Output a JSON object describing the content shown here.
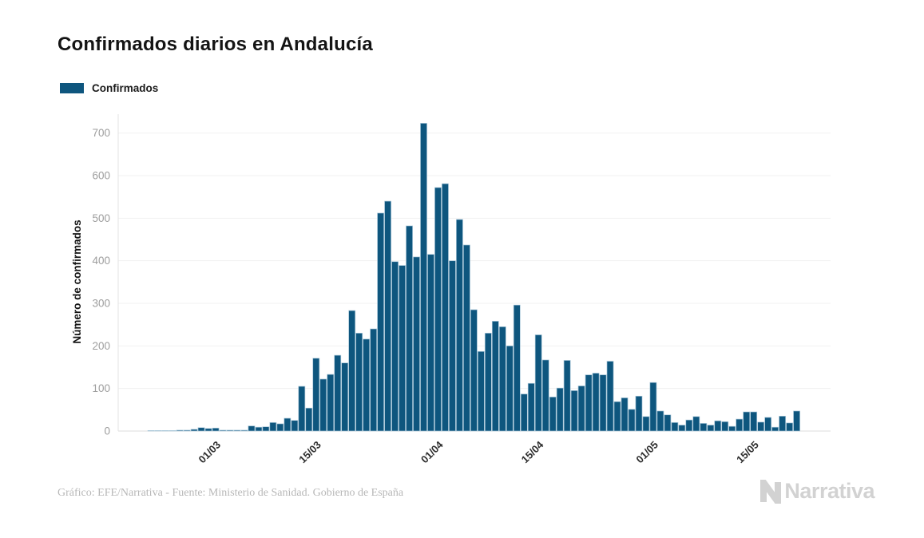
{
  "header": {
    "title": "Confirmados diarios en Andalucía"
  },
  "legend": {
    "label": "Confirmados",
    "swatch_color": "#0e567e"
  },
  "footer": {
    "credit": "Gráfico: EFE/Narrativa - Fuente: Ministerio de Sanidad. Gobierno de España"
  },
  "branding": {
    "logo_text": "Narrativa",
    "logo_color": "#d2d2d2"
  },
  "chart_data": {
    "type": "bar",
    "title": "Confirmados diarios en Andalucía",
    "series_name": "Confirmados",
    "xlabel": "",
    "ylabel": "Número de confirmados",
    "ylim": [
      0,
      700
    ],
    "ytick_step": 100,
    "grid": true,
    "legend_position": "top-left",
    "bar_color": "#0e567e",
    "bar_edge_color": "#a9c7d9",
    "xtick_labels": [
      "01/03",
      "15/03",
      "01/04",
      "15/04",
      "01/05",
      "15/05"
    ],
    "categories": [
      "21/02",
      "22/02",
      "23/02",
      "24/02",
      "25/02",
      "26/02",
      "27/02",
      "28/02",
      "29/02",
      "01/03",
      "02/03",
      "03/03",
      "04/03",
      "05/03",
      "06/03",
      "07/03",
      "08/03",
      "09/03",
      "10/03",
      "11/03",
      "12/03",
      "13/03",
      "14/03",
      "15/03",
      "16/03",
      "17/03",
      "18/03",
      "19/03",
      "20/03",
      "21/03",
      "22/03",
      "23/03",
      "24/03",
      "25/03",
      "26/03",
      "27/03",
      "28/03",
      "29/03",
      "30/03",
      "31/03",
      "01/04",
      "02/04",
      "03/04",
      "04/04",
      "05/04",
      "06/04",
      "07/04",
      "08/04",
      "09/04",
      "10/04",
      "11/04",
      "12/04",
      "13/04",
      "14/04",
      "15/04",
      "16/04",
      "17/04",
      "18/04",
      "19/04",
      "20/04",
      "21/04",
      "22/04",
      "23/04",
      "24/04",
      "25/04",
      "26/04",
      "27/04",
      "28/04",
      "29/04",
      "30/04",
      "01/05",
      "02/05",
      "03/05",
      "04/05",
      "05/05",
      "06/05",
      "07/05",
      "08/05",
      "09/05",
      "10/05",
      "11/05",
      "12/05",
      "13/05",
      "14/05",
      "15/05",
      "16/05",
      "17/05",
      "18/05",
      "19/05",
      "20/05",
      "21/05"
    ],
    "values": [
      1,
      1,
      1,
      1,
      2,
      2,
      4,
      8,
      6,
      7,
      2,
      2,
      2,
      2,
      12,
      9,
      10,
      20,
      17,
      30,
      25,
      105,
      54,
      171,
      122,
      133,
      178,
      160,
      283,
      230,
      216,
      240,
      512,
      540,
      398,
      389,
      482,
      409,
      723,
      415,
      572,
      581,
      400,
      497,
      437,
      285,
      187,
      230,
      258,
      245,
      200,
      296,
      87,
      112,
      226,
      167,
      80,
      101,
      166,
      95,
      106,
      132,
      136,
      132,
      164,
      69,
      78,
      51,
      82,
      34,
      114,
      47,
      38,
      20,
      14,
      26,
      34,
      18,
      14,
      24,
      22,
      11,
      28,
      45,
      45,
      21,
      32,
      9,
      35,
      19,
      47
    ]
  }
}
